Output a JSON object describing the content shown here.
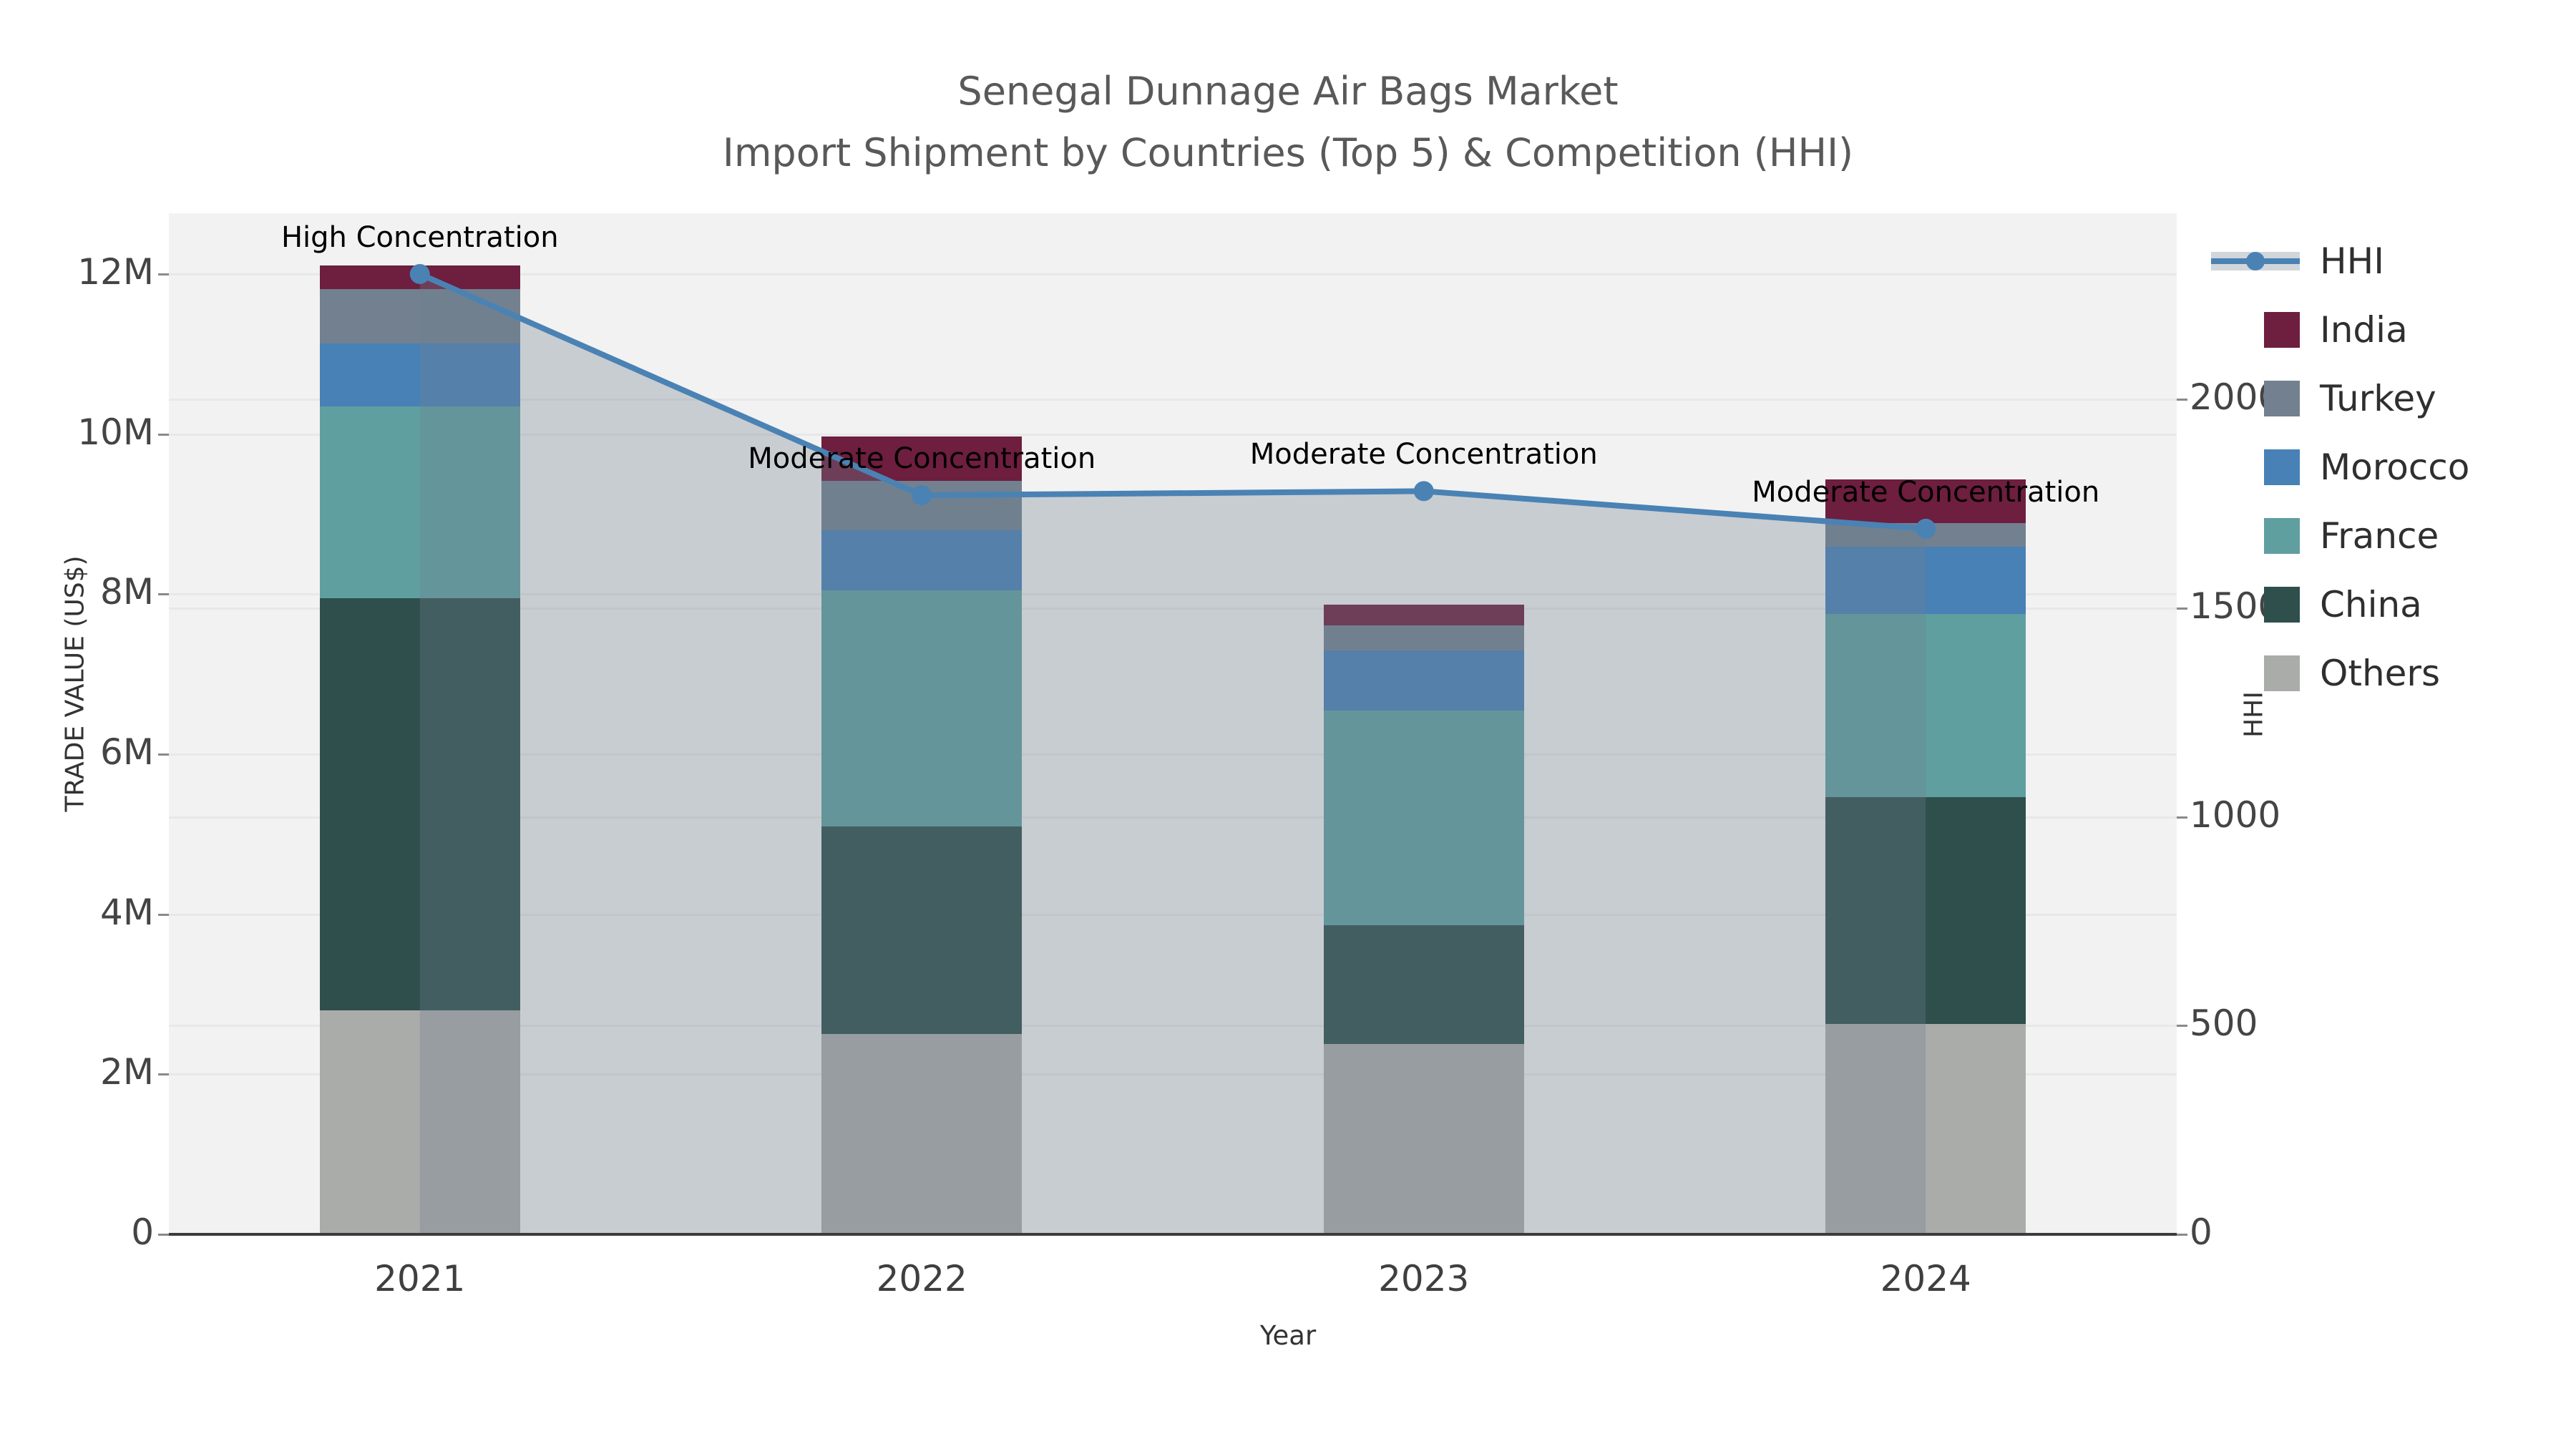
{
  "chart_data": {
    "type": "combo-stacked-bar-line-area",
    "title_line1": "Senegal Dunnage Air Bags Market",
    "title_line2": "Import Shipment by Countries (Top 5) & Competition (HHI)",
    "xlabel": "Year",
    "ylabel_left": "TRADE VALUE (US$)",
    "ylabel_right": "HHI",
    "categories": [
      "2021",
      "2022",
      "2023",
      "2024"
    ],
    "left_axis": {
      "ticks_m": [
        0,
        2,
        4,
        6,
        8,
        10,
        12
      ],
      "tick_labels": [
        "0",
        "2M",
        "4M",
        "6M",
        "8M",
        "10M",
        "12M"
      ],
      "unit": "million US$",
      "ylim": [
        0,
        12.77
      ]
    },
    "right_axis": {
      "ticks": [
        0,
        500,
        1000,
        1500,
        2000
      ],
      "tick_labels": [
        "0",
        "500",
        "1000",
        "1500",
        "2000"
      ],
      "ylim": [
        0,
        2447
      ]
    },
    "series_stack_bottom_to_top": [
      {
        "name": "Others",
        "color": "#aaacaa",
        "values_m": [
          2.8,
          2.5,
          2.38,
          2.63
        ]
      },
      {
        "name": "China",
        "color": "#2e4f4c",
        "values_m": [
          5.15,
          2.6,
          1.48,
          2.83
        ]
      },
      {
        "name": "France",
        "color": "#5f9fa0",
        "values_m": [
          2.4,
          2.95,
          2.69,
          2.29
        ]
      },
      {
        "name": "Morocco",
        "color": "#4781b5",
        "values_m": [
          0.78,
          0.75,
          0.75,
          0.84
        ]
      },
      {
        "name": "Turkey",
        "color": "#72808f",
        "values_m": [
          0.68,
          0.62,
          0.31,
          0.3
        ]
      },
      {
        "name": "India",
        "color": "#6e1e3e",
        "values_m": [
          0.3,
          0.55,
          0.26,
          0.54
        ]
      }
    ],
    "bar_totals_m": [
      12.11,
      9.97,
      7.87,
      9.43
    ],
    "hhi_series": {
      "name": "HHI",
      "values": [
        2300,
        1770,
        1780,
        1690
      ],
      "line_color": "#4a82b4",
      "area_fill": "rgba(112,128,144,0.32)"
    },
    "annotations": [
      {
        "year": "2021",
        "text": "High Concentration"
      },
      {
        "year": "2022",
        "text": "Moderate Concentration"
      },
      {
        "year": "2023",
        "text": "Moderate Concentration"
      },
      {
        "year": "2024",
        "text": "Moderate Concentration"
      }
    ],
    "legend": [
      {
        "label": "HHI",
        "type": "line"
      },
      {
        "label": "India",
        "type": "square",
        "color": "#6e1e3e"
      },
      {
        "label": "Turkey",
        "type": "square",
        "color": "#72808f"
      },
      {
        "label": "Morocco",
        "type": "square",
        "color": "#4781b5"
      },
      {
        "label": "France",
        "type": "square",
        "color": "#5f9fa0"
      },
      {
        "label": "China",
        "type": "square",
        "color": "#2e4f4c"
      },
      {
        "label": "Others",
        "type": "square",
        "color": "#aaacaa"
      }
    ],
    "colors": {
      "plot_bg": "#f2f2f2",
      "gridline": "#e8e8e8",
      "axis_line": "#3c3c3c",
      "title_text": "#595959",
      "tick_text": "#444444"
    },
    "grid": true,
    "legend_position": "right"
  }
}
